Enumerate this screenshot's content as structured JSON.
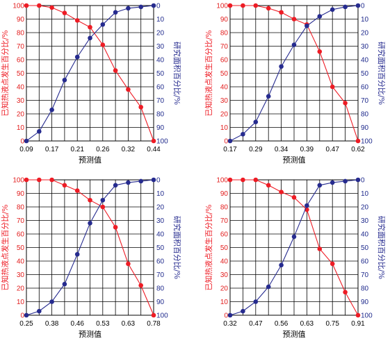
{
  "colors": {
    "red": "#ee1c25",
    "blue": "#262b8f",
    "grid": "#000000"
  },
  "chart_data": [
    {
      "type": "line",
      "xlabel": "预测值",
      "ylabel_left": "已知热液点发生百分比/%",
      "ylabel_right": "研究面积百分比/%",
      "x_ticks": [
        "0.09",
        "0.17",
        "0.21",
        "0.26",
        "0.32",
        "0.44"
      ],
      "y_left_ticks": [
        "0",
        "10",
        "20",
        "30",
        "40",
        "50",
        "60",
        "70",
        "80",
        "90",
        "100"
      ],
      "y_right_ticks": [
        "0",
        "10",
        "20",
        "30",
        "40",
        "50",
        "60",
        "70",
        "80",
        "90",
        "100"
      ],
      "ylim": [
        0,
        100
      ],
      "series": [
        {
          "color": "red",
          "axis": "left",
          "values": [
            100,
            100,
            98.5,
            94.5,
            89,
            84,
            71,
            52,
            38,
            25,
            0
          ]
        },
        {
          "color": "blue",
          "axis": "right_inverted",
          "values": [
            100,
            93,
            77,
            55,
            38,
            24,
            14,
            5,
            2,
            1,
            0
          ]
        }
      ]
    },
    {
      "type": "line",
      "xlabel": "预测值",
      "ylabel_left": "已知热液点发生百分比/%",
      "ylabel_right": "研究面积百分比/%",
      "x_ticks": [
        "0.17",
        "0.29",
        "0.34",
        "0.39",
        "0.47",
        "0.62"
      ],
      "y_left_ticks": [
        "0",
        "10",
        "20",
        "30",
        "40",
        "50",
        "60",
        "70",
        "80",
        "90",
        "100"
      ],
      "y_right_ticks": [
        "0",
        "10",
        "20",
        "30",
        "40",
        "50",
        "60",
        "70",
        "80",
        "90",
        "100"
      ],
      "ylim": [
        0,
        100
      ],
      "series": [
        {
          "color": "red",
          "axis": "left",
          "values": [
            100,
            100,
            100,
            98,
            95,
            90,
            86,
            66,
            40,
            28,
            0
          ]
        },
        {
          "color": "blue",
          "axis": "right_inverted",
          "values": [
            100,
            95,
            86,
            67,
            45,
            29,
            15,
            8,
            3,
            1,
            0
          ]
        }
      ]
    },
    {
      "type": "line",
      "xlabel": "预测值",
      "ylabel_left": "已知热液点发生百分比/%",
      "ylabel_right": "研究面积百分比/%",
      "x_ticks": [
        "0.25",
        "0.38",
        "0.46",
        "0.53",
        "0.63",
        "0.78"
      ],
      "y_left_ticks": [
        "0",
        "10",
        "20",
        "30",
        "40",
        "50",
        "60",
        "70",
        "80",
        "90",
        "100"
      ],
      "y_right_ticks": [
        "0",
        "10",
        "20",
        "30",
        "40",
        "50",
        "60",
        "70",
        "80",
        "90",
        "100"
      ],
      "ylim": [
        0,
        100
      ],
      "series": [
        {
          "color": "red",
          "axis": "left",
          "values": [
            100,
            100,
            100,
            96,
            92,
            85,
            80,
            65,
            38,
            22,
            0
          ]
        },
        {
          "color": "blue",
          "axis": "right_inverted",
          "values": [
            100,
            97,
            90,
            77,
            55,
            32,
            15,
            4,
            2,
            1,
            0
          ]
        }
      ]
    },
    {
      "type": "line",
      "xlabel": "预测值",
      "ylabel_left": "已知热液点发生百分比/%",
      "ylabel_right": "研究面积百分比/%",
      "x_ticks": [
        "0.32",
        "0.47",
        "0.56",
        "0.63",
        "0.75",
        "0.91"
      ],
      "y_left_ticks": [
        "0",
        "10",
        "20",
        "30",
        "40",
        "50",
        "60",
        "70",
        "80",
        "90",
        "100"
      ],
      "y_right_ticks": [
        "0",
        "10",
        "20",
        "30",
        "40",
        "50",
        "60",
        "70",
        "80",
        "90",
        "100"
      ],
      "ylim": [
        0,
        100
      ],
      "series": [
        {
          "color": "red",
          "axis": "left",
          "values": [
            100,
            100,
            100,
            96,
            91,
            87,
            78,
            49,
            38,
            17,
            0
          ]
        },
        {
          "color": "blue",
          "axis": "right_inverted",
          "values": [
            100,
            97,
            90,
            79,
            63,
            42,
            19,
            4,
            2,
            1,
            0
          ]
        }
      ]
    }
  ]
}
